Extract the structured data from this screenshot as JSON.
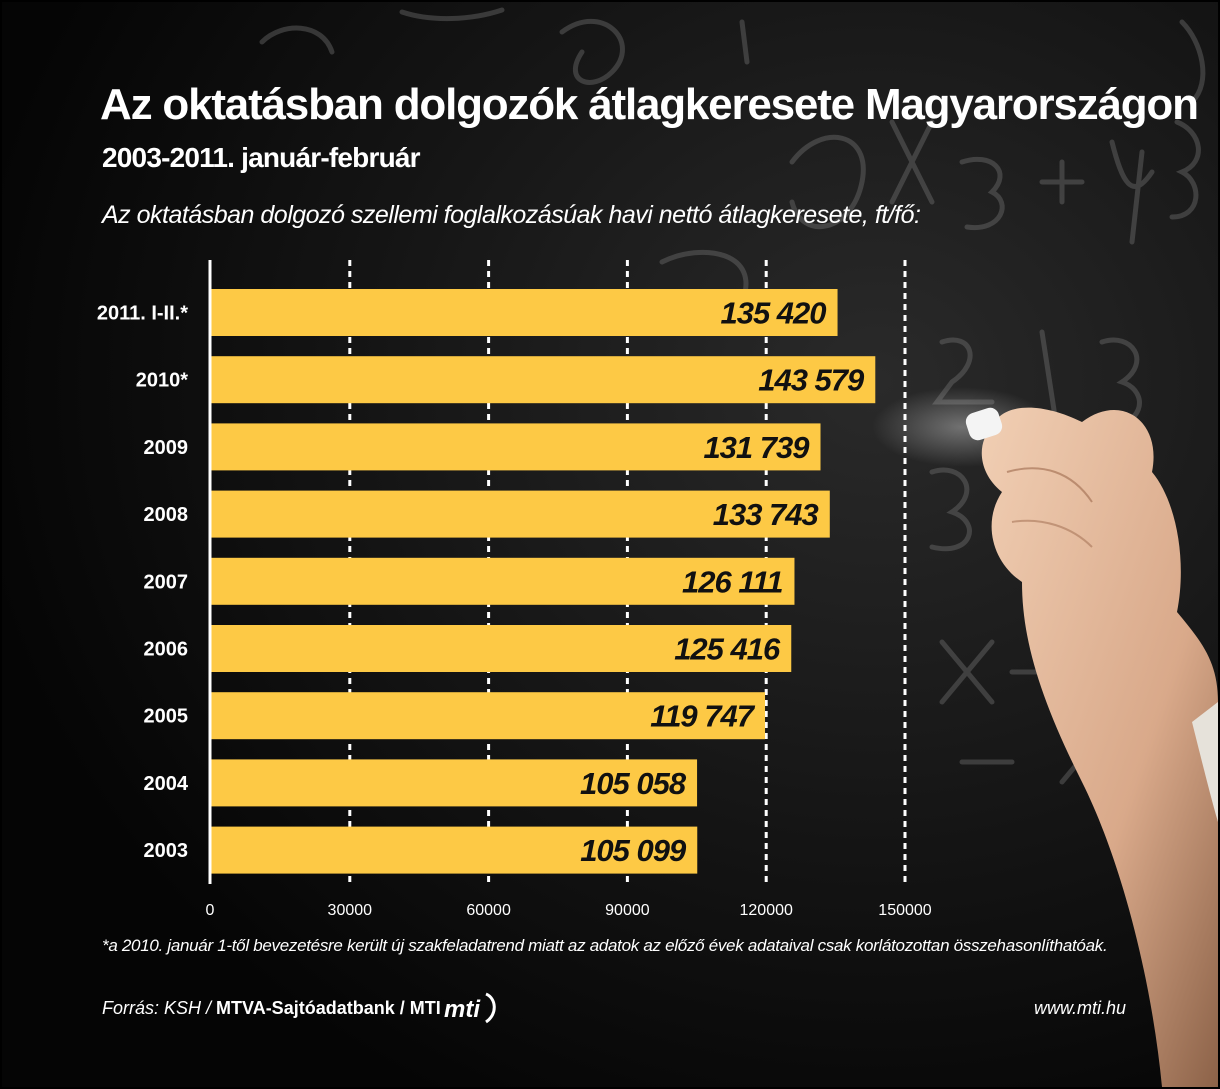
{
  "header": {
    "title": "Az oktatásban dolgozók átlagkeresete Magyarországon",
    "subtitle": "2003-2011. január-február",
    "unit_label": "Az oktatásban dolgozó szellemi foglalkozásúak havi nettó átlagkeresete, ft/fő:"
  },
  "chart_data": {
    "type": "bar",
    "orientation": "horizontal",
    "categories": [
      "2011. I-II.*",
      "2010*",
      "2009",
      "2008",
      "2007",
      "2006",
      "2005",
      "2004",
      "2003"
    ],
    "values": [
      135420,
      143579,
      131739,
      133743,
      126111,
      125416,
      119747,
      105058,
      105099
    ],
    "value_labels": [
      "135 420",
      "143 579",
      "131 739",
      "133 743",
      "126 111",
      "125 416",
      "119 747",
      "105 058",
      "105 099"
    ],
    "xlim": [
      0,
      150000
    ],
    "xticks": [
      0,
      30000,
      60000,
      90000,
      120000,
      150000
    ],
    "xtick_labels": [
      "0",
      "30000",
      "60000",
      "90000",
      "120000",
      "150000"
    ],
    "grid": "vertical dashed",
    "bar_color": "#FDC945"
  },
  "footer": {
    "footnote": "*a 2010. január 1-től bevezetésre került új szakfeladatrend miatt az adatok az előző évek adataival csak korlátozottan összehasonlíthatóak.",
    "source_label": "Forrás: KSH / ",
    "source_agencies": "MTVA-Sajtóadatbank / MTI",
    "logo_text": "mti",
    "website": "www.mti.hu"
  },
  "colors": {
    "background": "#070707",
    "bar": "#FDC945",
    "text": "#FFFFFF",
    "value_text": "#111111",
    "grid": "#FFFFFF"
  },
  "decor": {
    "background_image": "chalkboard with chalk equations and a hand holding chalk"
  }
}
